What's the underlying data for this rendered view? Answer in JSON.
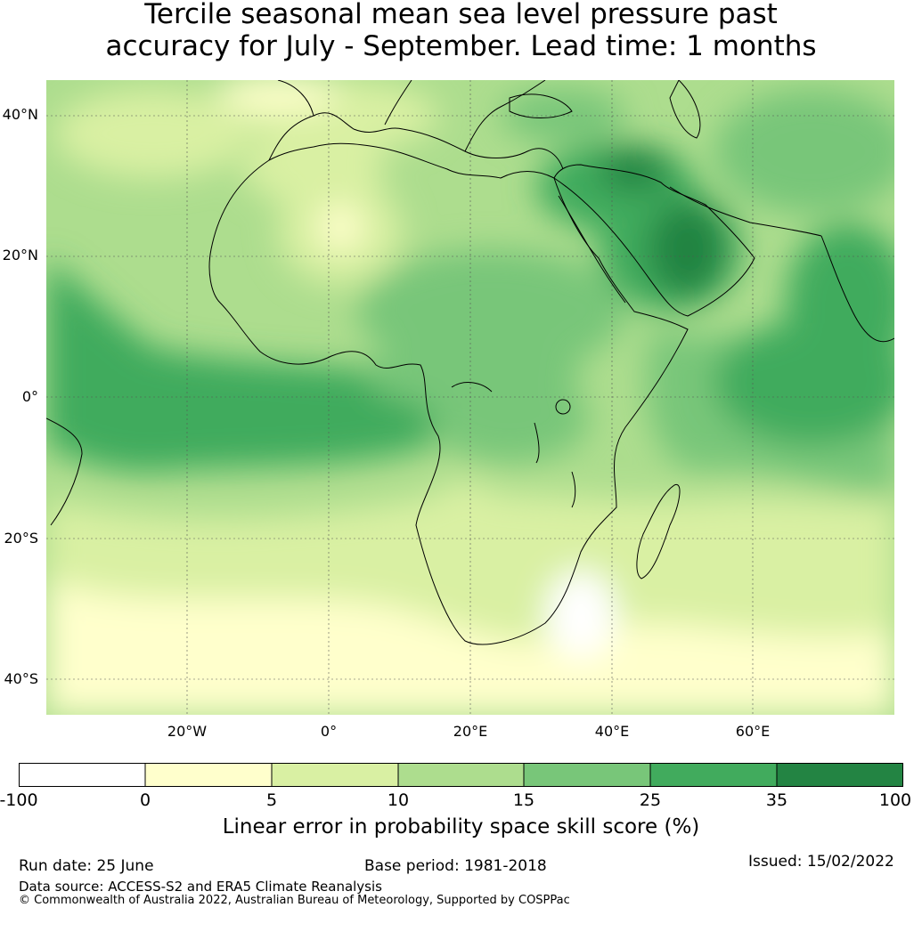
{
  "title": {
    "line1": "Tercile seasonal mean sea level pressure past",
    "line2": "accuracy for July - September. Lead time: 1 months"
  },
  "map": {
    "lat_labels": [
      "40°N",
      "20°N",
      "0°",
      "20°S",
      "40°S"
    ],
    "lon_labels": [
      "20°W",
      "0°",
      "20°E",
      "40°E",
      "60°E"
    ],
    "lat_values": [
      40,
      20,
      0,
      -20,
      -40
    ],
    "lon_values": [
      -20,
      0,
      20,
      40,
      60
    ],
    "extent": {
      "lon_min": -40,
      "lon_max": 80,
      "lat_min": -45,
      "lat_max": 45
    }
  },
  "colorbar": {
    "ticks": [
      "-100",
      "0",
      "5",
      "10",
      "15",
      "25",
      "35",
      "100"
    ],
    "colors": [
      "#ffffff",
      "#ffffcc",
      "#d9f0a3",
      "#addd8e",
      "#78c679",
      "#41ab5d",
      "#238443"
    ],
    "label": "Linear error in probability space skill score (%)"
  },
  "footer": {
    "run_date": "Run date: 25 June",
    "base_period": "Base period: 1981-2018",
    "issued": "Issued: 15/02/2022",
    "data_source": "Data source: ACCESS-S2 and ERA5 Climate Reanalysis",
    "copyright": "© Commonwealth of Australia 2022, Australian Bureau of Meteorology, Supported by COSPPac"
  }
}
